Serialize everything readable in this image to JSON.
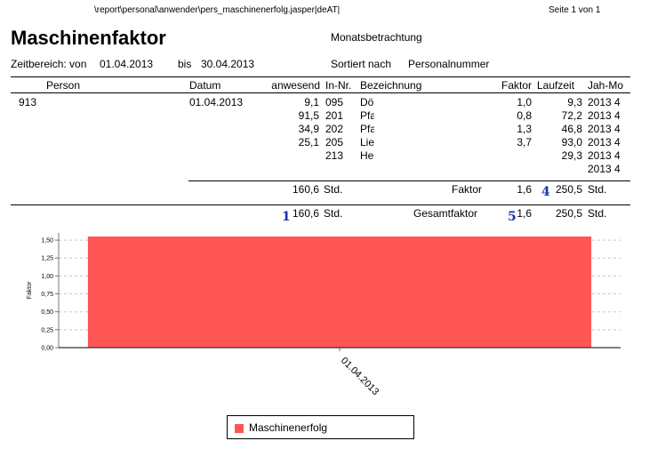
{
  "header": {
    "path": "\\report\\personal\\anwender\\pers_maschinenerfolg.jasper|deAT|",
    "page_info": "Seite 1 von  1",
    "title": "Maschinenfaktor",
    "subtitle": "Monatsbetrachtung",
    "range_label": "Zeitbereich: von",
    "range_from": "01.04.2013",
    "range_bis": "bis",
    "range_to": "30.04.2013",
    "sort_label": "Sortiert nach",
    "sort_value": "Personalnummer"
  },
  "columns": {
    "person": "Person",
    "datum": "Datum",
    "anwesend": "anwesend",
    "inr": "In-Nr.",
    "bez": "Bezeichnung",
    "faktor": "Faktor",
    "laufzeit": "Laufzeit",
    "jahmo": "Jah-Mo"
  },
  "group": {
    "person": "913",
    "datum": "01.04.2013",
    "rows": [
      {
        "anwesend": "9,1",
        "inr": "095",
        "bez": "Dö",
        "faktor": "1,0",
        "laufzeit": "9,3",
        "jahmo": "2013 4"
      },
      {
        "anwesend": "91,5",
        "inr": "201",
        "bez": "Pfa",
        "faktor": "0,8",
        "laufzeit": "72,2",
        "jahmo": "2013 4"
      },
      {
        "anwesend": "34,9",
        "inr": "202",
        "bez": "Pfa",
        "faktor": "1,3",
        "laufzeit": "46,8",
        "jahmo": "2013 4"
      },
      {
        "anwesend": "25,1",
        "inr": "205",
        "bez": "Lie",
        "faktor": "3,7",
        "laufzeit": "93,0",
        "jahmo": "2013 4"
      },
      {
        "anwesend": "",
        "inr": "213",
        "bez": "He",
        "faktor": "",
        "laufzeit": "29,3",
        "jahmo": "2013 4"
      },
      {
        "anwesend": "",
        "inr": "",
        "bez": "",
        "faktor": "",
        "laufzeit": "",
        "jahmo": "2013 4"
      }
    ],
    "subtotal": {
      "anwesend": "160,6",
      "unit": "Std.",
      "label": "Faktor",
      "faktor": "1,6",
      "laufzeit": "250,5",
      "unit2": "Std."
    }
  },
  "total": {
    "anwesend": "160,6",
    "unit": "Std.",
    "label": "Gesamtfaktor",
    "faktor": "1,6",
    "laufzeit": "250,5",
    "unit2": "Std."
  },
  "markers": {
    "m1": "1",
    "m4": "4",
    "m5": "5"
  },
  "chart_data": {
    "type": "bar",
    "categories": [
      "01.04.2013"
    ],
    "series": [
      {
        "name": "Maschinenerfolg",
        "values": [
          1.55
        ]
      }
    ],
    "ylabel": "Faktor",
    "xlabel": "",
    "ylim": [
      0,
      1.6
    ],
    "yticks": [
      "0,00",
      "0,25",
      "0,50",
      "0,75",
      "1,00",
      "1,25",
      "1,50"
    ],
    "grid": true,
    "legend": "bottom-center",
    "color": "#ff5555"
  }
}
